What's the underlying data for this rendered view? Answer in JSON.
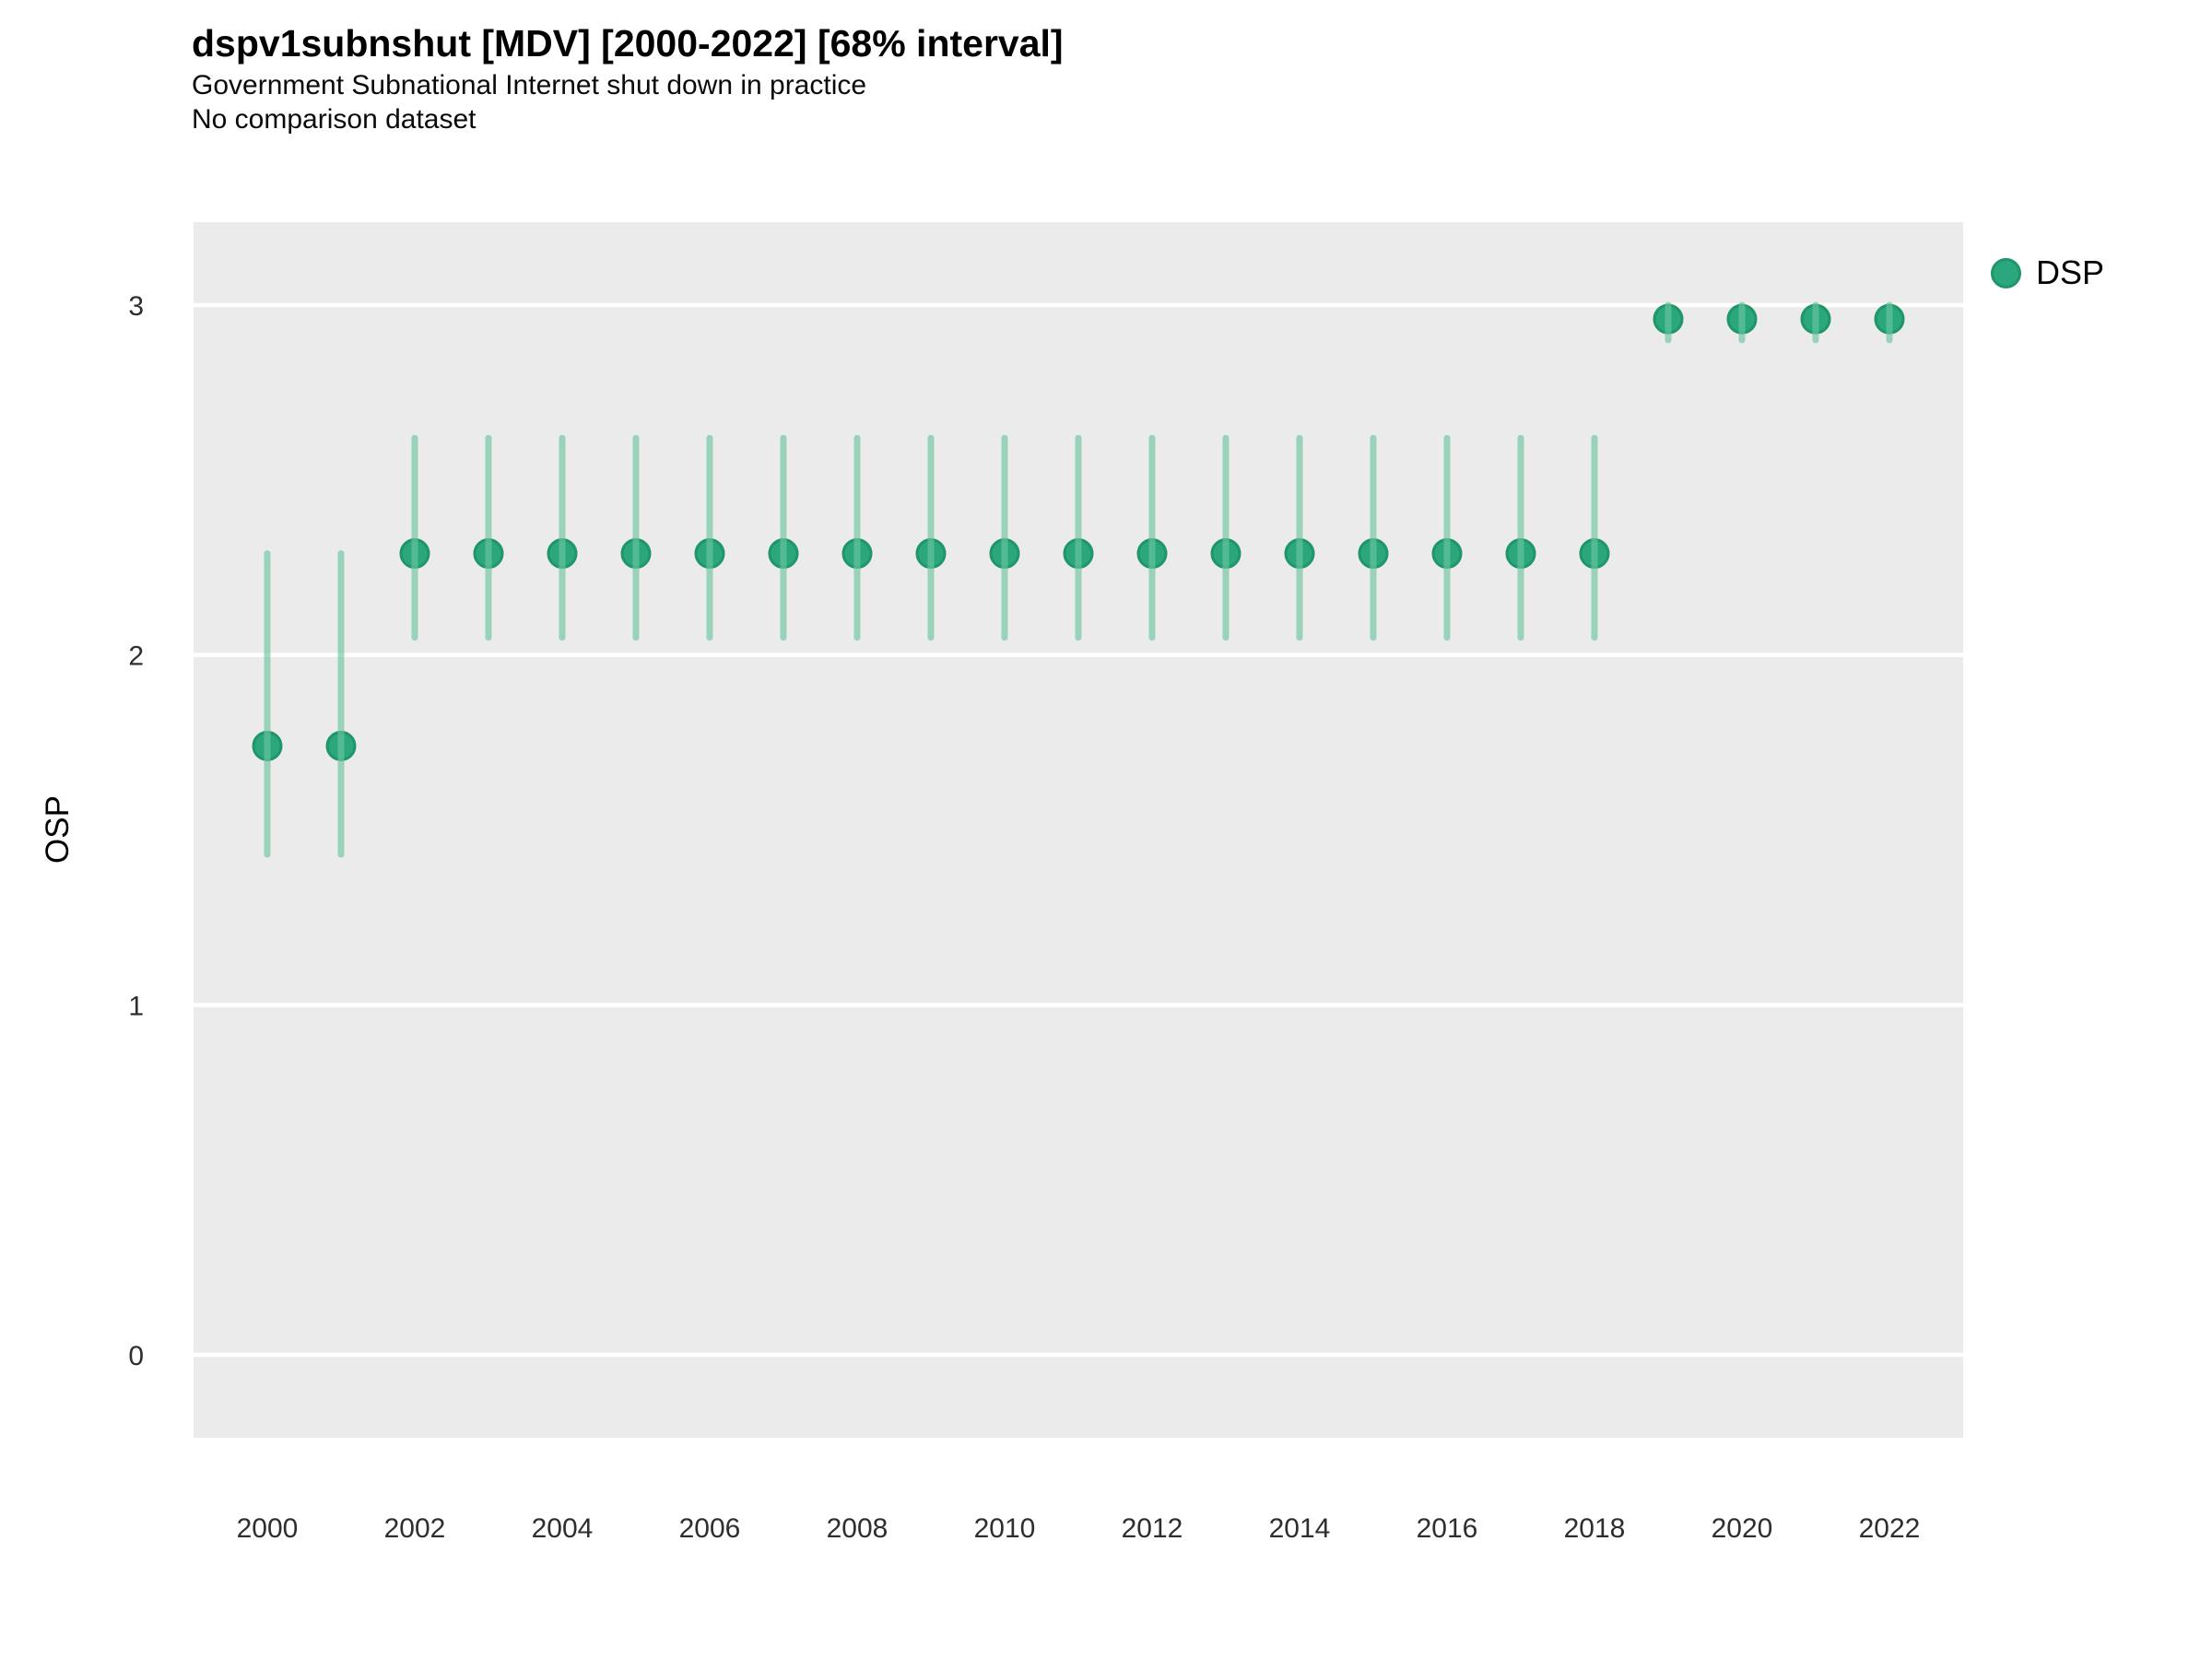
{
  "title": "dspv1subnshut [MDV] [2000-2022] [68% interval]",
  "subtitle": "Government Subnational Internet shut down in practice",
  "subtitle2": "No comparison dataset",
  "y_axis_label": "OSP",
  "legend": {
    "position": "right",
    "items": [
      {
        "label": "DSP",
        "color": "#2aa77c",
        "border_color": "#1f9568"
      }
    ]
  },
  "colors": {
    "panel_bg": "#ebebeb",
    "grid": "#ffffff",
    "axis_text": "#2e2e2e",
    "point": "#2aa77c",
    "point_border": "#1f9568",
    "interval": "#6bc5a1",
    "interval_opacity": 0.65
  },
  "chart_data": {
    "type": "scatter",
    "title": "dspv1subnshut [MDV] [2000-2022] [68% interval]",
    "subtitle": "Government Subnational Internet shut down in practice",
    "comparison_note": "No comparison dataset",
    "xlabel": "",
    "ylabel": "OSP",
    "interval_label": "68% interval",
    "grid": "major-horizontal",
    "legend_position": "right",
    "xlim": [
      1999,
      2023
    ],
    "ylim": [
      -0.237,
      3.237
    ],
    "x_ticks": [
      2000,
      2002,
      2004,
      2006,
      2008,
      2010,
      2012,
      2014,
      2016,
      2018,
      2020,
      2022
    ],
    "y_ticks": [
      0,
      1,
      2,
      3
    ],
    "series": [
      {
        "name": "DSP",
        "x": [
          2000,
          2001,
          2002,
          2003,
          2004,
          2005,
          2006,
          2007,
          2008,
          2009,
          2010,
          2011,
          2012,
          2013,
          2014,
          2015,
          2016,
          2017,
          2018,
          2019,
          2020,
          2021,
          2022
        ],
        "y": [
          1.74,
          1.74,
          2.29,
          2.29,
          2.29,
          2.29,
          2.29,
          2.29,
          2.29,
          2.29,
          2.29,
          2.29,
          2.29,
          2.29,
          2.29,
          2.29,
          2.29,
          2.29,
          2.29,
          2.96,
          2.96,
          2.96,
          2.96
        ],
        "lo": [
          1.43,
          1.43,
          2.05,
          2.05,
          2.05,
          2.05,
          2.05,
          2.05,
          2.05,
          2.05,
          2.05,
          2.05,
          2.05,
          2.05,
          2.05,
          2.05,
          2.05,
          2.05,
          2.05,
          2.9,
          2.9,
          2.9,
          2.9
        ],
        "hi": [
          2.29,
          2.29,
          2.62,
          2.62,
          2.62,
          2.62,
          2.62,
          2.62,
          2.62,
          2.62,
          2.62,
          2.62,
          2.62,
          2.62,
          2.62,
          2.62,
          2.62,
          2.62,
          2.62,
          3.0,
          3.0,
          3.0,
          3.0
        ]
      }
    ]
  }
}
